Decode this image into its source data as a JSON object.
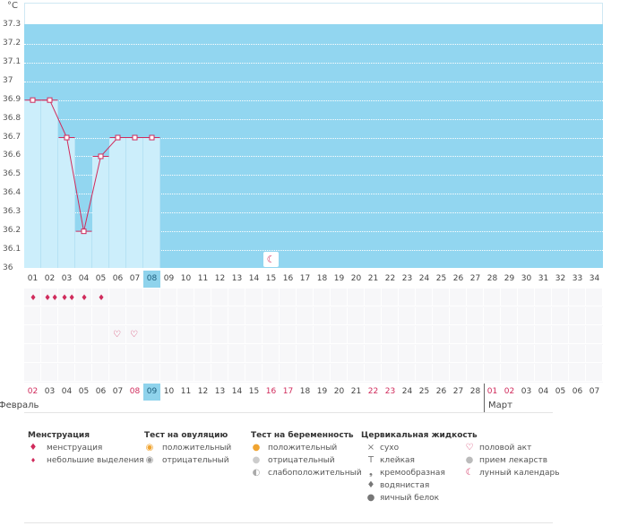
{
  "chart": {
    "unit": "°C",
    "y_ticks": [
      "37.3",
      "37.2",
      "37.1",
      "37",
      "36.9",
      "36.8",
      "36.7",
      "36.6",
      "36.5",
      "36.4",
      "36.3",
      "36.2",
      "36.1",
      "36"
    ],
    "x_labels": [
      "01",
      "02",
      "03",
      "04",
      "05",
      "06",
      "07",
      "08",
      "09",
      "10",
      "11",
      "12",
      "13",
      "14",
      "15",
      "16",
      "17",
      "18",
      "19",
      "20",
      "21",
      "22",
      "23",
      "24",
      "25",
      "26",
      "27",
      "28",
      "29",
      "30",
      "31",
      "32",
      "33",
      "34"
    ],
    "today_index": 7
  },
  "chart_data": {
    "type": "line",
    "x": [
      "01",
      "02",
      "03",
      "04",
      "05",
      "06",
      "07",
      "08"
    ],
    "values": [
      36.9,
      36.9,
      36.7,
      36.2,
      36.6,
      36.7,
      36.7,
      36.7
    ],
    "ylim": [
      36.0,
      37.3
    ],
    "xlabel": "",
    "ylabel": "°C",
    "grid": true
  },
  "symptoms": {
    "menstruation_days": [
      1,
      2,
      3,
      4,
      5
    ],
    "menstruation_heavy": [
      false,
      true,
      true,
      false,
      false
    ],
    "intercourse_days": [
      6,
      7
    ],
    "moon_day_index": 14
  },
  "dates": {
    "labels": [
      "02",
      "03",
      "04",
      "05",
      "06",
      "07",
      "08",
      "09",
      "10",
      "11",
      "12",
      "13",
      "14",
      "15",
      "16",
      "17",
      "18",
      "19",
      "20",
      "21",
      "22",
      "23",
      "24",
      "25",
      "26",
      "27",
      "28",
      "01",
      "02",
      "03",
      "04",
      "05",
      "06",
      "07"
    ],
    "red_indices": [
      0,
      6,
      14,
      15,
      20,
      21,
      27,
      28
    ],
    "today_index": 7,
    "month_feb": "Февраль",
    "month_mar": "Март"
  },
  "legend": {
    "menstruation": {
      "title": "Менструация",
      "items": [
        "менструация",
        "небольшие выделения"
      ]
    },
    "ovulation": {
      "title": "Тест на овуляцию",
      "items": [
        "положительный",
        "отрицательный"
      ]
    },
    "pregnancy": {
      "title": "Тест на беременность",
      "items": [
        "положительный",
        "отрицательный",
        "слабоположительный"
      ]
    },
    "cervical": {
      "title": "Цервикальная жидкость",
      "items": [
        "сухо",
        "клейкая",
        "кремообразная",
        "водянистая",
        "яичный белок"
      ]
    },
    "other": {
      "items": [
        "половой акт",
        "прием лекарств",
        "лунный календарь"
      ]
    }
  },
  "colors": {
    "accent": "#d02b5c",
    "chart_bg": "#92d6f0",
    "highlight": "#cceefb",
    "today": "#8fd3ec"
  }
}
